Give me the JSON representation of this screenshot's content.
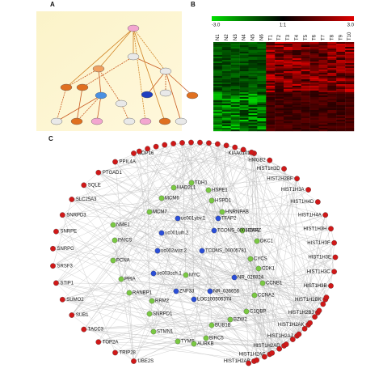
{
  "panels": {
    "a": "A",
    "b": "B",
    "c": "C"
  },
  "heatmap": {
    "scale_labels": [
      "-3.0",
      "1:1",
      "3.0"
    ],
    "columns": [
      "N1",
      "N2",
      "N3",
      "N4",
      "N5",
      "N6",
      "T1",
      "T2",
      "T3",
      "T4",
      "T5",
      "T6",
      "T7",
      "T8",
      "T9",
      "T10"
    ]
  },
  "network": {
    "outer_left": [
      "NOP16",
      "PPIL4A",
      "PTGAD1",
      "SQLE",
      "SLC25A3",
      "SNRPD3",
      "SNRPE",
      "SNRPG",
      "SRSF3",
      "STIP1",
      "SUMO2",
      "SUB1",
      "TACC3",
      "TOP2A",
      "TRIP28",
      "UBE2S"
    ],
    "outer_right": [
      "KIAA0101",
      "HMGB2",
      "HIST1H3D",
      "HIST2H2BF",
      "HIST1H3A",
      "HIST1H4D",
      "HIST1H4A",
      "HIST1H3H",
      "HIST1H3F",
      "HIST1H3E",
      "HIST1H3C",
      "HIST1H3B",
      "HIST1H2BK",
      "HIST1H2BJ",
      "HIST1H2AK",
      "HIST1H2AJ",
      "HIST1H2AD",
      "HIST1H2AC",
      "HIST1H2AB"
    ],
    "inner_coding": [
      "MAD2L1",
      "TDH1",
      "HSPE1",
      "HSPD1",
      "MCM6",
      "MCM7",
      "HNRNPAB",
      "H2AFZ",
      "NME1",
      "DKC1",
      "PAICS",
      "CYCS",
      "PCNA",
      "CDK1",
      "CCNB1",
      "PPIA",
      "MYC",
      "RANBP1",
      "CCNA2",
      "RRM2",
      "C1QBP",
      "SNRPD1",
      "BZW2",
      "BUB1B",
      "STMN1",
      "TYMS",
      "AURKB",
      "BIRC5"
    ],
    "inner_noncoding": [
      "uc001ybv.1",
      "TFAP2",
      "uc001uih.2",
      "TCONS_00017004",
      "uc002wuz.2",
      "TCONS_00005781",
      "uc003cch.1",
      "ZNF33",
      "NR_026824",
      "LOC100506374",
      "NR_036656"
    ]
  }
}
